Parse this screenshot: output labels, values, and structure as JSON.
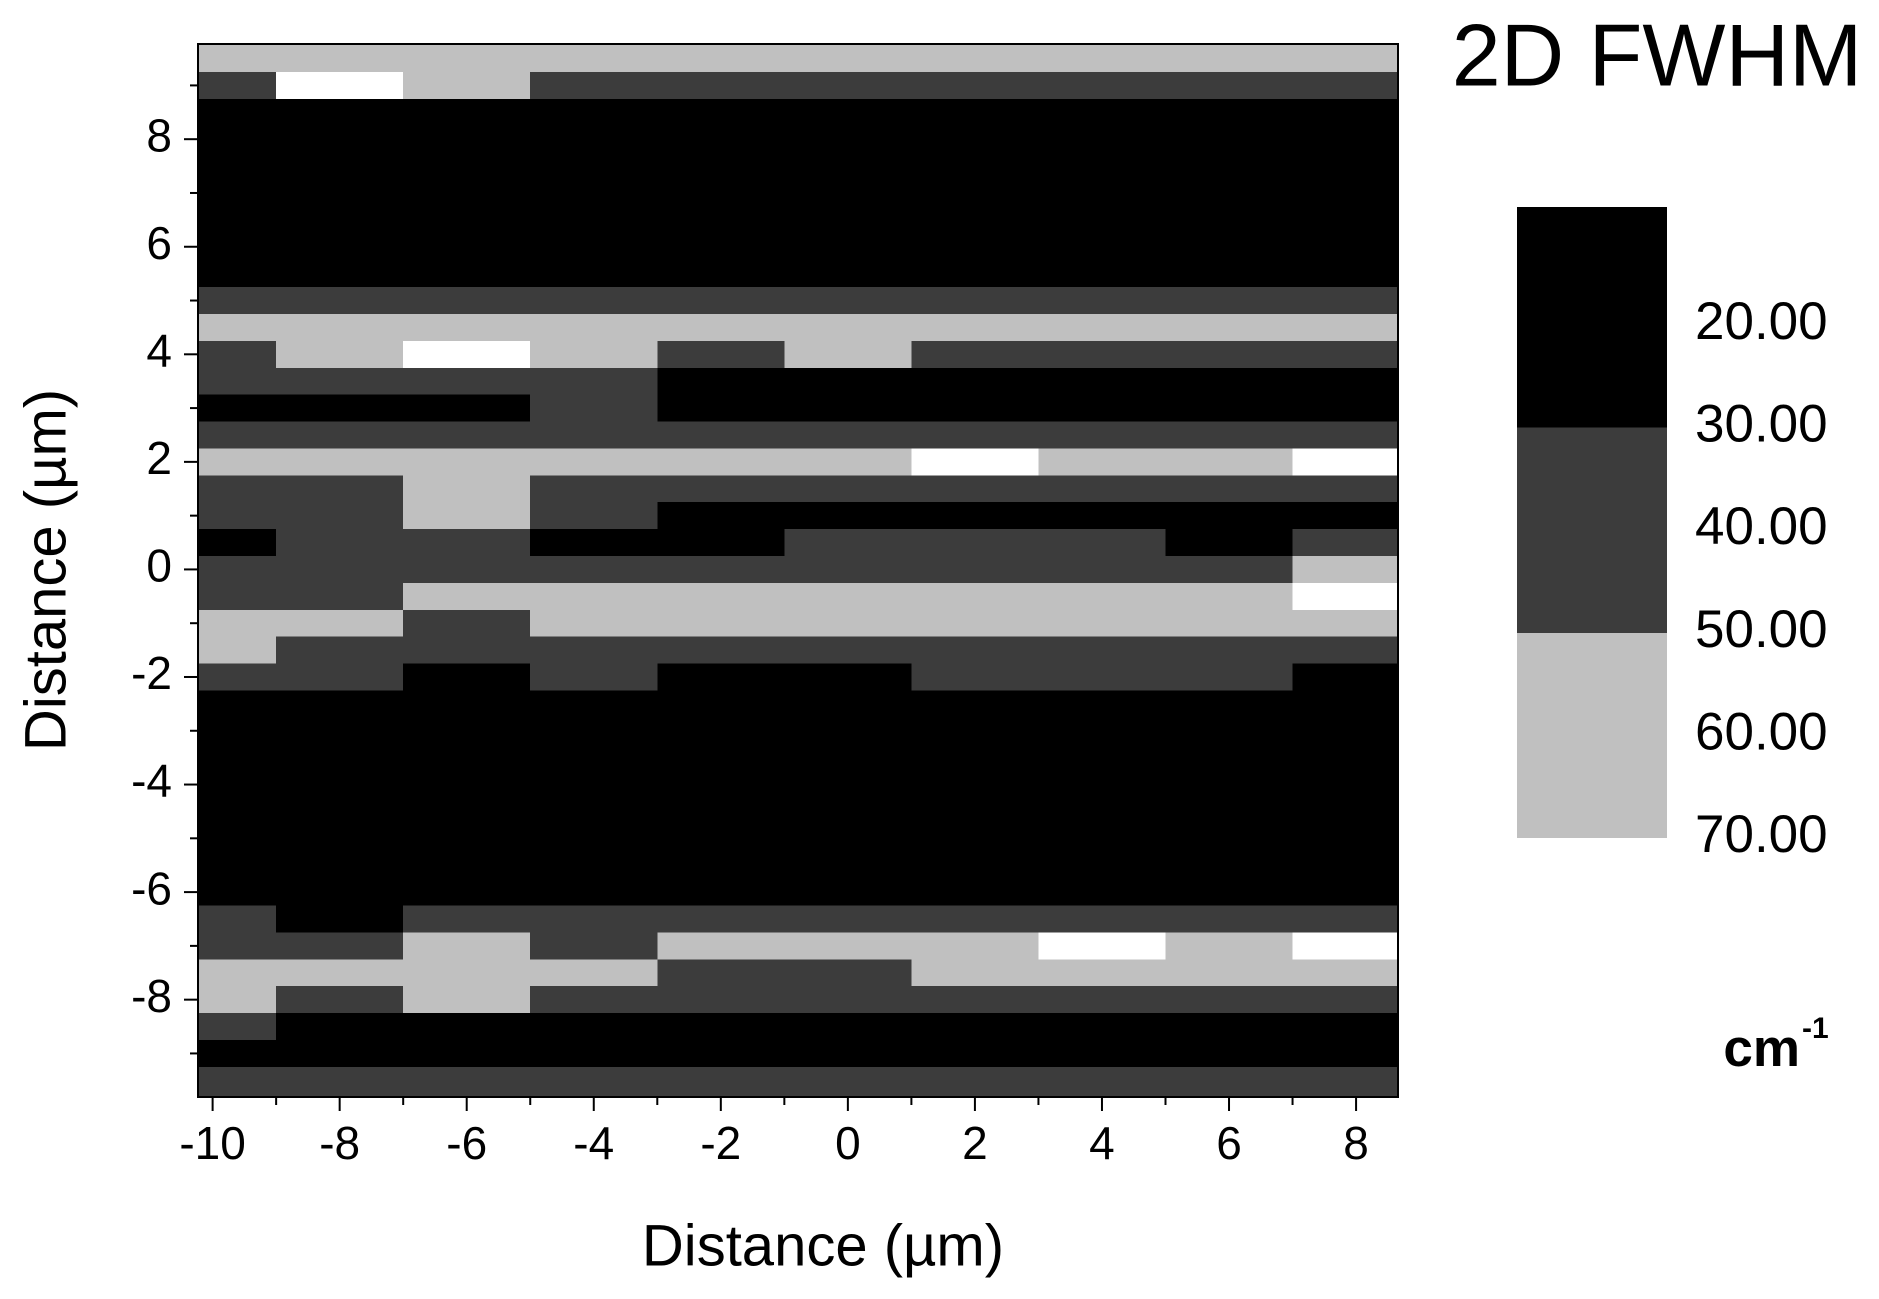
{
  "chart_data": {
    "type": "contour",
    "title": "2D FWHM",
    "xlabel": "Distance (µm)",
    "ylabel": "Distance (µm)",
    "xlim": [
      -10.23,
      8.66
    ],
    "ylim": [
      -9.81,
      9.77
    ],
    "xticks": [
      -10,
      -8,
      -6,
      -4,
      -2,
      0,
      2,
      4,
      6,
      8
    ],
    "yticks": [
      -8,
      -6,
      -4,
      -2,
      0,
      2,
      4,
      6,
      8
    ],
    "xminorticks": [
      -9,
      -7,
      -5,
      -3,
      -1,
      1,
      3,
      5,
      7
    ],
    "yminorticks": [
      -9,
      -7,
      -5,
      -3,
      -1,
      1,
      3,
      5,
      7,
      9
    ],
    "x": [
      -10,
      -8,
      -6,
      -4,
      -2,
      0,
      2,
      4,
      6,
      8
    ],
    "y": [
      9.5,
      9.0,
      8.5,
      8.0,
      7.5,
      7.0,
      6.5,
      6.0,
      5.5,
      5.0,
      4.5,
      4.0,
      3.5,
      3.0,
      2.5,
      2.0,
      1.5,
      1.0,
      0.5,
      0.0,
      -0.5,
      -1.0,
      -1.5,
      -2.0,
      -2.5,
      -3.0,
      -3.5,
      -4.0,
      -4.5,
      -5.0,
      -5.5,
      -6.0,
      -6.5,
      -7.0,
      -7.5,
      -8.0,
      -8.5,
      -9.0,
      -9.5
    ],
    "z": [
      [
        55,
        62,
        55,
        60,
        58,
        60,
        62,
        58,
        65,
        58
      ],
      [
        45,
        72,
        50,
        42,
        40,
        40,
        42,
        40,
        40,
        42
      ],
      [
        28,
        26,
        25,
        25,
        24,
        25,
        24,
        25,
        26,
        25
      ],
      [
        22,
        22,
        21,
        22,
        23,
        22,
        21,
        22,
        22,
        21
      ],
      [
        21,
        22,
        22,
        21,
        22,
        22,
        23,
        22,
        21,
        22
      ],
      [
        22,
        21,
        22,
        22,
        21,
        22,
        22,
        21,
        22,
        22
      ],
      [
        22,
        22,
        21,
        22,
        22,
        21,
        22,
        22,
        22,
        21
      ],
      [
        23,
        22,
        22,
        22,
        21,
        22,
        22,
        23,
        22,
        22
      ],
      [
        26,
        25,
        24,
        24,
        25,
        24,
        24,
        26,
        27,
        25
      ],
      [
        42,
        40,
        38,
        40,
        42,
        40,
        38,
        45,
        48,
        44
      ],
      [
        55,
        58,
        62,
        55,
        52,
        55,
        50,
        60,
        62,
        58
      ],
      [
        45,
        60,
        76,
        55,
        48,
        52,
        45,
        48,
        44,
        46
      ],
      [
        35,
        32,
        30,
        38,
        28,
        26,
        25,
        27,
        26,
        25
      ],
      [
        25,
        24,
        28,
        32,
        26,
        25,
        24,
        28,
        26,
        24
      ],
      [
        42,
        38,
        40,
        38,
        40,
        42,
        45,
        44,
        48,
        46
      ],
      [
        62,
        66,
        58,
        55,
        58,
        60,
        72,
        58,
        60,
        72
      ],
      [
        42,
        45,
        55,
        40,
        38,
        35,
        36,
        34,
        35,
        36
      ],
      [
        30,
        35,
        52,
        32,
        26,
        28,
        25,
        26,
        25,
        28
      ],
      [
        26,
        33,
        30,
        25,
        24,
        32,
        34,
        30,
        28,
        32
      ],
      [
        32,
        30,
        36,
        34,
        36,
        42,
        45,
        44,
        48,
        62
      ],
      [
        40,
        45,
        58,
        60,
        58,
        55,
        52,
        62,
        58,
        70
      ],
      [
        58,
        56,
        48,
        62,
        58,
        60,
        58,
        56,
        54,
        52
      ],
      [
        62,
        48,
        40,
        40,
        38,
        40,
        42,
        38,
        40,
        42
      ],
      [
        32,
        30,
        28,
        30,
        28,
        28,
        32,
        40,
        30,
        28
      ],
      [
        23,
        22,
        22,
        22,
        22,
        22,
        22,
        26,
        22,
        22
      ],
      [
        22,
        22,
        21,
        22,
        22,
        22,
        21,
        22,
        22,
        21
      ],
      [
        21,
        22,
        22,
        22,
        21,
        22,
        22,
        22,
        21,
        22
      ],
      [
        22,
        21,
        22,
        22,
        22,
        21,
        22,
        22,
        22,
        22
      ],
      [
        22,
        22,
        22,
        21,
        22,
        22,
        22,
        21,
        22,
        22
      ],
      [
        22,
        22,
        21,
        22,
        22,
        22,
        21,
        22,
        22,
        22
      ],
      [
        23,
        22,
        22,
        22,
        22,
        22,
        22,
        23,
        24,
        22
      ],
      [
        25,
        24,
        23,
        23,
        24,
        24,
        25,
        27,
        26,
        25
      ],
      [
        35,
        28,
        30,
        32,
        32,
        34,
        38,
        42,
        44,
        40
      ],
      [
        45,
        42,
        58,
        42,
        58,
        60,
        62,
        76,
        60,
        72
      ],
      [
        60,
        58,
        66,
        60,
        45,
        48,
        55,
        58,
        52,
        50
      ],
      [
        55,
        48,
        52,
        40,
        38,
        36,
        40,
        38,
        36,
        34
      ],
      [
        30,
        28,
        26,
        25,
        25,
        24,
        24,
        25,
        26,
        25
      ],
      [
        22,
        22,
        22,
        21,
        22,
        22,
        22,
        22,
        22,
        22
      ],
      [
        32,
        30,
        33,
        35,
        30,
        32,
        30,
        34,
        32,
        34
      ]
    ],
    "levels": [
      30,
      50,
      70
    ],
    "level_colors": [
      "#000000",
      "#3c3c3c",
      "#c0c0c0",
      "#ffffff"
    ],
    "colorbar": {
      "lim": [
        8.5,
        70
      ],
      "ticks": [
        {
          "value": 20,
          "label": "20.00"
        },
        {
          "value": 30,
          "label": "30.00"
        },
        {
          "value": 40,
          "label": "40.00"
        },
        {
          "value": 50,
          "label": "50.00"
        },
        {
          "value": 60,
          "label": "60.00"
        },
        {
          "value": 70,
          "label": "70.00"
        }
      ],
      "unit": "cm",
      "unit_exponent": "-1"
    }
  }
}
